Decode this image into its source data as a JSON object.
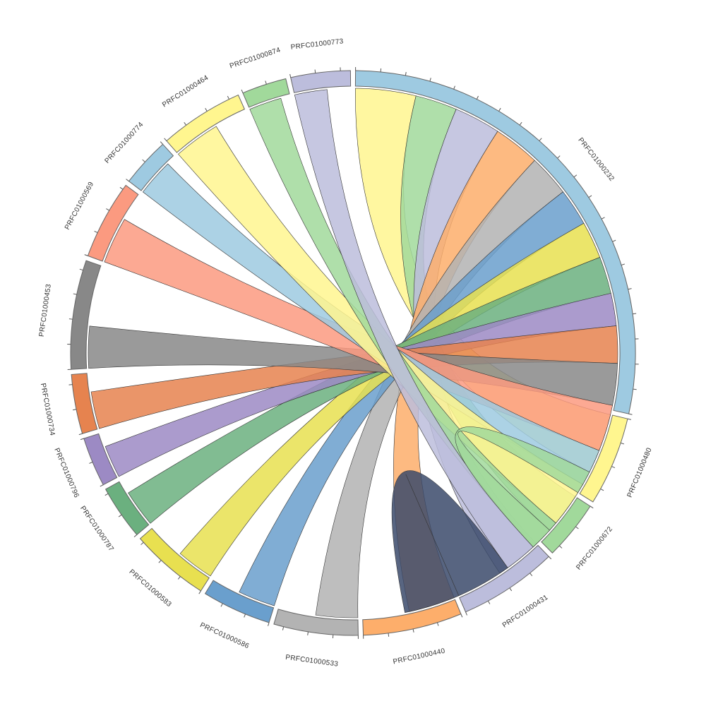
{
  "chart_data": {
    "type": "chord",
    "groups": [
      {
        "name": "PRFC01000232",
        "value": 100,
        "color": "#9ecae1"
      },
      {
        "name": "PRFC01000480",
        "value": 18,
        "color": "#fff68f"
      },
      {
        "name": "PRFC01000672",
        "value": 12,
        "color": "#a1d99b"
      },
      {
        "name": "PRFC01000431",
        "value": 20,
        "color": "#bcbddc"
      },
      {
        "name": "PRFC01000440",
        "value": 20,
        "color": "#fdae6b"
      },
      {
        "name": "PRFC01000533",
        "value": 17,
        "color": "#b3b3b3"
      },
      {
        "name": "PRFC01000586",
        "value": 14,
        "color": "#6a9fcd"
      },
      {
        "name": "PRFC01000583",
        "value": 16,
        "color": "#e8e050"
      },
      {
        "name": "PRFC01000787",
        "value": 11,
        "color": "#6bb07f"
      },
      {
        "name": "PRFC01000796",
        "value": 10,
        "color": "#9c8ac4"
      },
      {
        "name": "PRFC01000734",
        "value": 12,
        "color": "#e6834f"
      },
      {
        "name": "PRFC01000453",
        "value": 22,
        "color": "#888888"
      },
      {
        "name": "PRFC01000569",
        "value": 16,
        "color": "#fb9a80"
      },
      {
        "name": "PRFC01000774",
        "value": 10,
        "color": "#9ecae1"
      },
      {
        "name": "PRFC01000464",
        "value": 17,
        "color": "#fff68f"
      },
      {
        "name": "PRFC01000874",
        "value": 9,
        "color": "#a1d99b"
      },
      {
        "name": "PRFC01000773",
        "value": 12,
        "color": "#bcbddc"
      }
    ],
    "links": [
      {
        "source": "PRFC01000232",
        "target": "PRFC01000480",
        "value": 13
      },
      {
        "source": "PRFC01000232",
        "target": "PRFC01000672",
        "value": 9
      },
      {
        "source": "PRFC01000232",
        "target": "PRFC01000431",
        "value": 10
      },
      {
        "source": "PRFC01000232",
        "target": "PRFC01000440",
        "value": 10
      },
      {
        "source": "PRFC01000232",
        "target": "PRFC01000533",
        "value": 9
      },
      {
        "source": "PRFC01000232",
        "target": "PRFC01000586",
        "value": 8
      },
      {
        "source": "PRFC01000232",
        "target": "PRFC01000583",
        "value": 8
      },
      {
        "source": "PRFC01000232",
        "target": "PRFC01000787",
        "value": 8
      },
      {
        "source": "PRFC01000232",
        "target": "PRFC01000796",
        "value": 7
      },
      {
        "source": "PRFC01000232",
        "target": "PRFC01000734",
        "value": 8
      },
      {
        "source": "PRFC01000232",
        "target": "PRFC01000453",
        "value": 9
      },
      {
        "source": "PRFC01000232",
        "target": "PRFC01000569",
        "value": 10
      },
      {
        "source": "PRFC01000232",
        "target": "PRFC01000774",
        "value": 8
      },
      {
        "source": "PRFC01000232",
        "target": "PRFC01000464",
        "value": 10
      },
      {
        "source": "PRFC01000232",
        "target": "PRFC01000874",
        "value": 7
      },
      {
        "source": "PRFC01000232",
        "target": "PRFC01000773",
        "value": 7
      },
      {
        "source": "PRFC01000232",
        "target": "PRFC01000232",
        "value": 12
      },
      {
        "source": "PRFC01000480",
        "target": "PRFC01000672",
        "value": 5
      }
    ]
  }
}
